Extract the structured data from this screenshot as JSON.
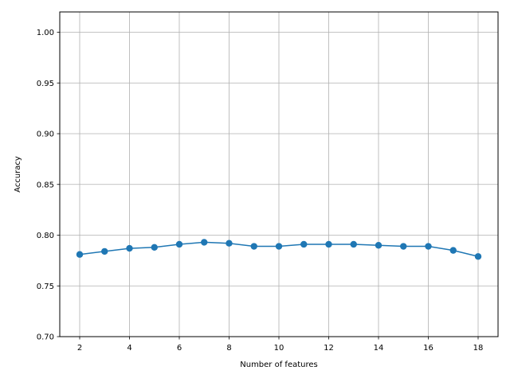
{
  "chart_data": {
    "type": "line",
    "title": "",
    "xlabel": "Number of features",
    "ylabel": "Accuracy",
    "xlim": [
      1.2,
      18.8
    ],
    "ylim": [
      0.7,
      1.02
    ],
    "xticks": [
      2,
      4,
      6,
      8,
      10,
      12,
      14,
      16,
      18
    ],
    "yticks": [
      0.7,
      0.75,
      0.8,
      0.85,
      0.9,
      0.95,
      1.0
    ],
    "xtick_labels": [
      "2",
      "4",
      "6",
      "8",
      "10",
      "12",
      "14",
      "16",
      "18"
    ],
    "ytick_labels": [
      "0.70",
      "0.75",
      "0.80",
      "0.85",
      "0.90",
      "0.95",
      "1.00"
    ],
    "grid": true,
    "series": [
      {
        "color": "#1f77b4",
        "marker": "circle",
        "x": [
          2,
          3,
          4,
          5,
          6,
          7,
          8,
          9,
          10,
          11,
          12,
          13,
          14,
          15,
          16,
          17,
          18
        ],
        "y": [
          0.781,
          0.784,
          0.787,
          0.788,
          0.791,
          0.793,
          0.792,
          0.789,
          0.789,
          0.791,
          0.791,
          0.791,
          0.79,
          0.789,
          0.789,
          0.785,
          0.779
        ]
      }
    ]
  }
}
